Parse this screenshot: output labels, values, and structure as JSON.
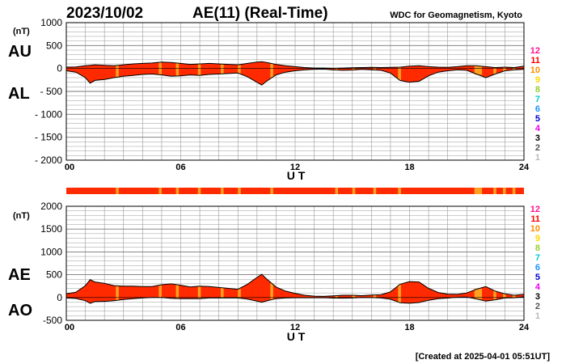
{
  "header": {
    "date": "2023/10/02",
    "title": "AE(11) (Real-Time)",
    "source": "WDC for Geomagnetism, Kyoto"
  },
  "footer": {
    "created": "[Created at 2025-04-01 05:51UT]"
  },
  "x_axis": {
    "label": "U T",
    "ticks": [
      "00",
      "06",
      "12",
      "18",
      "24"
    ]
  },
  "panel_top": {
    "label_upper": "AU",
    "label_lower": "AL",
    "unit": "(nT)",
    "y_ticks": [
      "1000",
      "500",
      "0",
      "- 500",
      "- 1000",
      "- 1500",
      "- 2000"
    ]
  },
  "panel_bottom": {
    "label_upper": "AE",
    "label_lower": "AO",
    "unit": "(nT)",
    "y_ticks": [
      "2000",
      "1500",
      "1000",
      "500",
      "0",
      "-500"
    ]
  },
  "legend": {
    "counts": [
      "12",
      "11",
      "10",
      "9",
      "8",
      "7",
      "6",
      "5",
      "4",
      "3",
      "2",
      "1"
    ],
    "colors": [
      "#ff1493",
      "#ff0000",
      "#ff8c00",
      "#ffd700",
      "#9acd32",
      "#00ced1",
      "#1e90ff",
      "#0000cd",
      "#ee00ee",
      "#000000",
      "#555555",
      "#bbbbbb"
    ]
  },
  "colors": {
    "fill_11": "#ff2a00",
    "fill_10": "#ffa020",
    "grid": "#999999"
  },
  "chart_data": [
    {
      "type": "area",
      "title": "AE(11) (Real-Time)",
      "xlabel": "U T",
      "ylabel": "(nT)",
      "xlim": [
        0,
        24
      ],
      "ylim": [
        -2000,
        1000
      ],
      "grid": true,
      "x": [
        0,
        0.5,
        1,
        1.25,
        1.5,
        2,
        2.5,
        3,
        3.5,
        4,
        4.5,
        5,
        5.5,
        6,
        6.5,
        7,
        7.5,
        8,
        8.5,
        9,
        9.5,
        10,
        10.25,
        10.5,
        11,
        11.5,
        12,
        12.5,
        13,
        13.5,
        14,
        14.5,
        15,
        15.5,
        16,
        16.5,
        17,
        17.5,
        18,
        18.5,
        19,
        19.5,
        20,
        20.5,
        21,
        21.5,
        22,
        22.5,
        23,
        23.5,
        24
      ],
      "series": [
        {
          "name": "AU",
          "values": [
            30,
            35,
            60,
            70,
            80,
            70,
            60,
            80,
            100,
            110,
            120,
            140,
            130,
            110,
            90,
            100,
            110,
            100,
            90,
            80,
            110,
            140,
            150,
            130,
            90,
            60,
            40,
            20,
            10,
            10,
            5,
            10,
            15,
            20,
            25,
            20,
            25,
            30,
            50,
            60,
            40,
            30,
            25,
            40,
            60,
            60,
            40,
            20,
            30,
            20,
            50
          ]
        },
        {
          "name": "AL",
          "values": [
            -50,
            -80,
            -200,
            -320,
            -260,
            -240,
            -200,
            -170,
            -150,
            -130,
            -120,
            -140,
            -170,
            -160,
            -140,
            -150,
            -130,
            -120,
            -110,
            -100,
            -180,
            -300,
            -360,
            -280,
            -140,
            -80,
            -50,
            -30,
            -20,
            -15,
            -30,
            -40,
            -35,
            -20,
            -30,
            -40,
            -100,
            -260,
            -300,
            -280,
            -160,
            -80,
            -50,
            -30,
            -40,
            -120,
            -200,
            -120,
            -50,
            -30,
            -20
          ]
        }
      ]
    },
    {
      "type": "area",
      "xlabel": "U T",
      "ylabel": "(nT)",
      "xlim": [
        0,
        24
      ],
      "ylim": [
        -500,
        2000
      ],
      "grid": true,
      "x": [
        0,
        0.5,
        1,
        1.25,
        1.5,
        2,
        2.5,
        3,
        3.5,
        4,
        4.5,
        5,
        5.5,
        6,
        6.5,
        7,
        7.5,
        8,
        8.5,
        9,
        9.5,
        10,
        10.25,
        10.5,
        11,
        11.5,
        12,
        12.5,
        13,
        13.5,
        14,
        14.5,
        15,
        15.5,
        16,
        16.5,
        17,
        17.5,
        18,
        18.5,
        19,
        19.5,
        20,
        20.5,
        21,
        21.5,
        22,
        22.5,
        23,
        23.5,
        24
      ],
      "series": [
        {
          "name": "AE",
          "values": [
            80,
            115,
            260,
            390,
            340,
            310,
            260,
            250,
            250,
            240,
            240,
            280,
            300,
            270,
            230,
            250,
            240,
            220,
            200,
            180,
            290,
            440,
            510,
            410,
            230,
            140,
            90,
            50,
            30,
            25,
            35,
            50,
            50,
            40,
            55,
            60,
            125,
            290,
            350,
            340,
            200,
            110,
            75,
            70,
            100,
            180,
            240,
            140,
            80,
            50,
            70
          ]
        },
        {
          "name": "AO",
          "values": [
            -10,
            -22,
            -70,
            -125,
            -90,
            -85,
            -70,
            -45,
            -25,
            -10,
            0,
            0,
            -20,
            -25,
            -25,
            -25,
            -10,
            -10,
            -10,
            -10,
            -35,
            -80,
            -105,
            -75,
            -25,
            -10,
            -5,
            -5,
            -5,
            -3,
            -12,
            -15,
            -10,
            0,
            -2,
            -10,
            -38,
            -115,
            -125,
            -110,
            -60,
            -25,
            -12,
            5,
            10,
            -30,
            -80,
            -50,
            -10,
            -5,
            15
          ]
        }
      ]
    }
  ]
}
